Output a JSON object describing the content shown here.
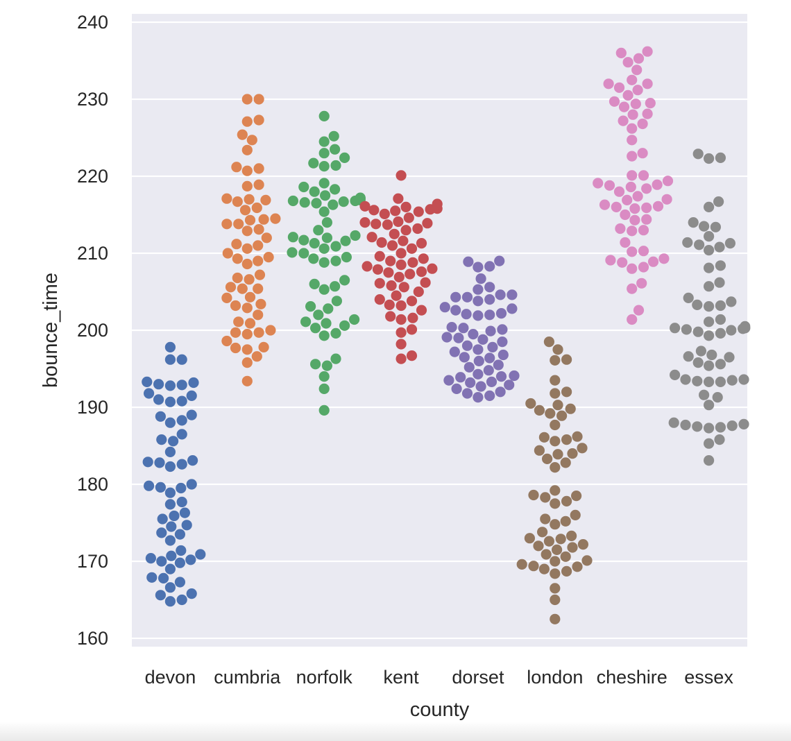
{
  "chart_data": {
    "type": "scatter",
    "subtype": "swarm",
    "title": "",
    "xlabel": "county",
    "ylabel": "bounce_time",
    "categories": [
      "devon",
      "cumbria",
      "norfolk",
      "kent",
      "dorset",
      "london",
      "cheshire",
      "essex"
    ],
    "ylim": [
      159,
      241
    ],
    "yticks": [
      160,
      170,
      180,
      190,
      200,
      210,
      220,
      230,
      240
    ],
    "grid": true,
    "background": "#eaeaf2",
    "grid_color": "#ffffff",
    "colors": [
      "#4c72b0",
      "#dd8452",
      "#55a868",
      "#c44e52",
      "#8172b3",
      "#937860",
      "#da8bc3",
      "#8c8c8c"
    ],
    "series": [
      {
        "category": "devon",
        "values": [
          197.8,
          196.2,
          196.2,
          193.3,
          193.2,
          193.0,
          192.9,
          192.8,
          191.8,
          191.5,
          191.0,
          190.8,
          190.7,
          189.0,
          188.8,
          188.3,
          188.0,
          186.5,
          185.8,
          185.6,
          184.2,
          183.1,
          182.9,
          182.8,
          182.6,
          182.3,
          180.0,
          179.8,
          179.6,
          179.5,
          178.9,
          177.7,
          177.4,
          176.3,
          175.9,
          175.5,
          174.7,
          174.5,
          173.7,
          173.5,
          172.7,
          171.4,
          170.9,
          170.7,
          170.4,
          170.2,
          170.0,
          169.8,
          169.0,
          167.9,
          167.8,
          167.3,
          166.6,
          165.8,
          165.6,
          165.0,
          164.8
        ]
      },
      {
        "category": "cumbria",
        "values": [
          230.0,
          230.0,
          227.3,
          227.1,
          225.4,
          224.7,
          223.4,
          221.2,
          221.0,
          220.7,
          218.9,
          218.7,
          217.1,
          217.0,
          216.9,
          216.7,
          215.9,
          215.6,
          214.5,
          214.4,
          214.3,
          213.8,
          213.8,
          213.1,
          212.9,
          212.0,
          211.2,
          211.0,
          210.6,
          210.0,
          209.5,
          209.3,
          209.0,
          208.6,
          207.2,
          206.8,
          206.6,
          205.6,
          205.4,
          205.4,
          204.3,
          204.2,
          203.4,
          203.2,
          202.9,
          202.0,
          201.1,
          200.9,
          200.0,
          199.7,
          199.7,
          199.5,
          198.6,
          197.8,
          197.7,
          197.5,
          196.6,
          195.8,
          193.4
        ]
      },
      {
        "category": "norfolk",
        "values": [
          227.8,
          225.2,
          224.5,
          223.5,
          223.0,
          222.4,
          221.7,
          221.4,
          221.3,
          219.1,
          218.6,
          218.3,
          218.0,
          217.5,
          217.2,
          217.1,
          216.9,
          216.8,
          216.8,
          216.7,
          216.6,
          216.5,
          216.3,
          215.4,
          214.0,
          213.0,
          212.3,
          212.1,
          212.0,
          211.7,
          211.6,
          211.3,
          210.9,
          210.6,
          210.1,
          210.0,
          209.5,
          209.3,
          209.0,
          208.8,
          206.5,
          206.0,
          205.7,
          205.3,
          203.8,
          203.1,
          202.8,
          202.0,
          201.4,
          201.1,
          200.9,
          200.6,
          200.3,
          199.6,
          199.3,
          196.3,
          195.6,
          195.4,
          194.0,
          192.4,
          189.6
        ]
      },
      {
        "category": "kent",
        "values": [
          220.1,
          217.1,
          216.4,
          216.1,
          216.0,
          215.8,
          215.7,
          215.6,
          215.5,
          215.4,
          215.1,
          214.6,
          214.1,
          214.0,
          213.9,
          213.8,
          213.7,
          213.2,
          213.0,
          212.5,
          212.1,
          211.6,
          211.4,
          211.3,
          211.0,
          210.6,
          210.0,
          209.6,
          209.3,
          209.0,
          208.8,
          208.5,
          208.3,
          208.0,
          207.9,
          207.6,
          207.5,
          207.3,
          206.9,
          206.2,
          206.1,
          205.8,
          205.6,
          205.0,
          204.5,
          204.0,
          203.8,
          203.3,
          203.2,
          202.6,
          201.8,
          201.6,
          201.4,
          200.1,
          199.7,
          198.2,
          196.7,
          196.3
        ]
      },
      {
        "category": "dorset",
        "values": [
          209.0,
          208.9,
          208.3,
          208.2,
          206.7,
          205.6,
          205.3,
          204.6,
          204.6,
          204.3,
          204.3,
          204.0,
          203.8,
          203.0,
          202.8,
          202.6,
          202.2,
          202.1,
          202.0,
          201.9,
          200.4,
          200.3,
          200.1,
          199.9,
          199.5,
          199.1,
          199.0,
          198.8,
          198.5,
          198.0,
          197.8,
          197.5,
          197.2,
          196.8,
          196.5,
          196.4,
          196.0,
          195.5,
          195.2,
          194.8,
          194.3,
          194.1,
          194.0,
          193.9,
          193.5,
          193.3,
          193.2,
          192.9,
          192.7,
          192.4,
          192.0,
          191.8,
          191.5,
          191.3
        ]
      },
      {
        "category": "london",
        "values": [
          198.5,
          197.5,
          196.2,
          196.1,
          193.5,
          192.0,
          191.8,
          190.5,
          190.3,
          189.8,
          189.6,
          189.2,
          188.9,
          187.7,
          186.2,
          186.1,
          185.8,
          185.6,
          184.7,
          184.4,
          184.0,
          183.9,
          183.3,
          182.8,
          182.2,
          179.2,
          178.6,
          178.5,
          178.3,
          177.8,
          177.5,
          176.0,
          175.5,
          175.2,
          174.8,
          173.8,
          173.3,
          173.0,
          172.9,
          172.6,
          172.2,
          172.0,
          171.8,
          171.5,
          170.9,
          170.6,
          170.1,
          170.0,
          169.6,
          169.4,
          169.3,
          169.0,
          168.7,
          168.4,
          166.5,
          165.0,
          162.5
        ]
      },
      {
        "category": "cheshire",
        "values": [
          236.2,
          236.0,
          235.3,
          234.8,
          233.8,
          232.5,
          232.0,
          232.0,
          231.5,
          231.2,
          230.5,
          229.7,
          229.5,
          229.4,
          229.0,
          228.1,
          228.0,
          227.2,
          226.8,
          226.2,
          224.7,
          223.0,
          222.6,
          220.1,
          220.1,
          219.4,
          219.1,
          218.9,
          218.8,
          218.6,
          218.4,
          218.0,
          217.4,
          217.0,
          216.9,
          216.3,
          216.1,
          216.0,
          215.9,
          215.8,
          215.0,
          214.4,
          214.3,
          213.2,
          213.0,
          212.9,
          211.4,
          210.3,
          210.2,
          209.3,
          209.1,
          208.9,
          208.8,
          208.2,
          208.0,
          206.1,
          205.4,
          202.6,
          201.4
        ]
      },
      {
        "category": "essex",
        "values": [
          222.9,
          222.4,
          222.3,
          216.7,
          216.0,
          214.0,
          213.5,
          213.4,
          212.2,
          211.4,
          211.3,
          211.1,
          210.8,
          210.4,
          208.4,
          208.1,
          206.2,
          205.7,
          204.2,
          203.7,
          203.3,
          203.2,
          203.1,
          201.4,
          201.1,
          200.5,
          200.3,
          200.3,
          200.3,
          200.2,
          200.1,
          200.0,
          199.8,
          199.6,
          199.3,
          197.3,
          196.8,
          196.6,
          196.5,
          195.8,
          195.6,
          195.4,
          194.2,
          193.6,
          193.6,
          193.5,
          193.4,
          193.3,
          193.3,
          191.6,
          191.3,
          190.3,
          188.0,
          187.8,
          187.7,
          187.6,
          187.5,
          187.4,
          187.3,
          185.8,
          185.3,
          183.1
        ]
      }
    ]
  }
}
